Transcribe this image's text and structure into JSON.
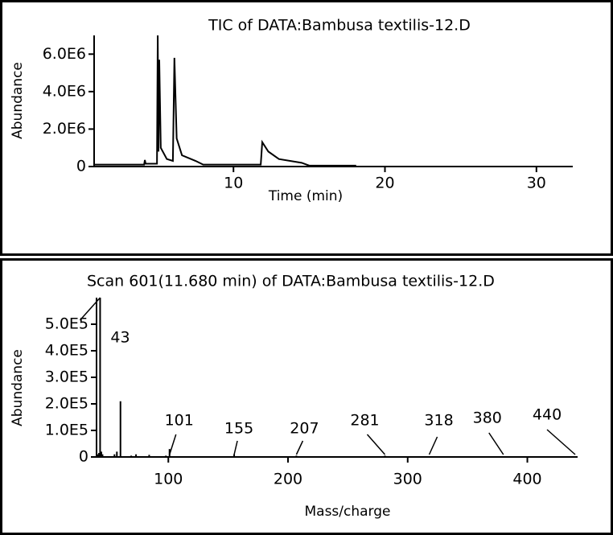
{
  "chart_data": [
    {
      "type": "line",
      "title": "TIC of DATA:Bambusa textilis-12.D",
      "x_label": "Time (min)",
      "y_label": "Abundance",
      "color": "#000000",
      "x": [
        0.8,
        4.1,
        4.15,
        4.2,
        4.95,
        5.0,
        5.05,
        5.1,
        5.2,
        5.6,
        6.0,
        6.1,
        6.25,
        6.6,
        7.5,
        8.0,
        11.8,
        11.9,
        12.3,
        13.0,
        14.5,
        15.0,
        18.1
      ],
      "values": [
        100000,
        100000,
        350000,
        150000,
        150000,
        7000000,
        800000,
        5700000,
        1000000,
        400000,
        300000,
        5800000,
        1500000,
        600000,
        300000,
        100000,
        100000,
        1300000,
        800000,
        400000,
        200000,
        50000,
        50000
      ],
      "xlim": [
        0.8,
        32.4
      ],
      "ylim": [
        0,
        7000000
      ],
      "xticks": [
        10,
        20,
        30
      ],
      "yticks": [
        0,
        {
          "value": 2000000,
          "label": "2.0E6"
        },
        {
          "value": 4000000,
          "label": "4.0E6"
        },
        {
          "value": 6000000,
          "label": "6.0E6"
        }
      ]
    },
    {
      "type": "spectrum",
      "title": "Scan 601(11.680 min) of DATA:Bambusa textilis-12.D",
      "x_label": "Mass/charge",
      "y_label": "Abundance",
      "color": "#000000",
      "x": [
        41,
        42,
        43,
        44,
        45,
        55,
        57,
        60,
        69,
        73,
        84,
        98,
        101,
        155,
        207,
        250,
        270,
        281,
        290,
        318,
        380,
        440
      ],
      "values": [
        10000,
        15000,
        600000,
        20000,
        10000,
        10000,
        20000,
        210000,
        5000,
        10000,
        8000,
        5000,
        30000,
        10000,
        5000,
        3000,
        3000,
        5000,
        3000,
        3000,
        2000,
        2000
      ],
      "annotations": [
        43,
        101,
        155,
        207,
        281,
        318,
        380,
        440
      ],
      "xlim": [
        40,
        442
      ],
      "ylim": [
        0,
        600000
      ],
      "xticks": [
        100,
        200,
        300,
        400
      ],
      "yticks": [
        0,
        {
          "value": 100000,
          "label": "1.0E5"
        },
        {
          "value": 200000,
          "label": "2.0E5"
        },
        {
          "value": 300000,
          "label": "3.0E5"
        },
        {
          "value": 400000,
          "label": "4.0E5"
        },
        {
          "value": 500000,
          "label": "5.0E5"
        }
      ]
    }
  ]
}
